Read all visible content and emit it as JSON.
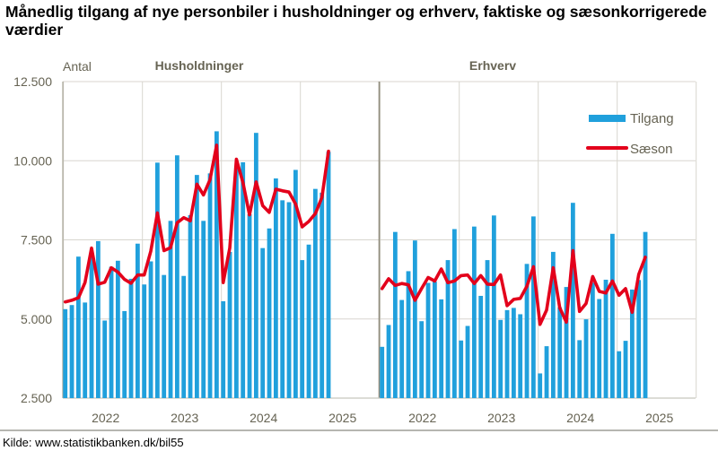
{
  "chart_data": [
    {
      "type": "bar+line",
      "title": "Månedlig tilgang af nye personbiler i husholdninger og erhverv, faktiske og sæsonkorrigerede værdier",
      "panel_title": "Husholdninger",
      "ylabel": "Antal",
      "ylim": [
        2500,
        12500
      ],
      "yticks": [
        "2.500",
        "5.000",
        "7.500",
        "10.000",
        "12.500"
      ],
      "ytick_values": [
        2500,
        5000,
        7500,
        10000,
        12500
      ],
      "xticks": [
        "2022",
        "2023",
        "2024",
        "2025"
      ],
      "x_start": "2022-01",
      "x_end": "2025-05",
      "grid": true,
      "series": [
        {
          "name": "Tilgang",
          "kind": "bar",
          "color": "#20a0dc",
          "values": [
            5310,
            5440,
            6970,
            5520,
            7100,
            7460,
            4950,
            6650,
            6840,
            5250,
            6270,
            7380,
            6090,
            6820,
            9940,
            6390,
            8100,
            10170,
            6360,
            8280,
            9550,
            8100,
            9600,
            10930,
            5560,
            7120,
            9800,
            9950,
            8310,
            10880,
            7240,
            7860,
            9440,
            8750,
            8690,
            9710,
            6860,
            7350,
            9110,
            8990,
            10280
          ]
        },
        {
          "name": "Sæson",
          "kind": "line",
          "color": "#e3001b",
          "values": [
            5540,
            5590,
            5670,
            6150,
            7240,
            6100,
            6160,
            6620,
            6480,
            6250,
            6130,
            6390,
            6390,
            7140,
            8350,
            7160,
            7250,
            8040,
            8200,
            8100,
            9260,
            8920,
            9400,
            10490,
            6150,
            7240,
            10050,
            9310,
            8290,
            9330,
            8580,
            8370,
            9100,
            9050,
            9010,
            8630,
            7910,
            8080,
            8330,
            8840,
            10300
          ]
        }
      ]
    },
    {
      "type": "bar+line",
      "panel_title": "Erhverv",
      "ylim": [
        2500,
        12500
      ],
      "xticks": [
        "2022",
        "2023",
        "2024",
        "2025"
      ],
      "x_start": "2022-01",
      "x_end": "2025-05",
      "grid": true,
      "legend": {
        "placement": "top-right",
        "entries": [
          "Tilgang",
          "Sæson"
        ]
      },
      "series": [
        {
          "name": "Tilgang",
          "kind": "bar",
          "color": "#20a0dc",
          "values": [
            4120,
            4810,
            7750,
            5600,
            6510,
            7480,
            4930,
            6140,
            6180,
            5620,
            6860,
            7840,
            4320,
            4780,
            7920,
            5730,
            6860,
            8270,
            4970,
            5280,
            5350,
            5150,
            6740,
            8240,
            3280,
            4140,
            7120,
            5370,
            6010,
            8670,
            4330,
            4990,
            6150,
            5630,
            6240,
            7690,
            3980,
            4310,
            5930,
            6230,
            7750
          ]
        },
        {
          "name": "Sæson",
          "kind": "line",
          "color": "#e3001b",
          "values": [
            5960,
            6270,
            6060,
            6120,
            6080,
            5590,
            5960,
            6310,
            6200,
            6580,
            6150,
            6200,
            6370,
            6390,
            6120,
            6370,
            6100,
            6090,
            6390,
            5420,
            5620,
            5650,
            6030,
            6650,
            4830,
            5280,
            6620,
            5350,
            4900,
            7160,
            5240,
            5490,
            6340,
            5870,
            5820,
            6200,
            5750,
            5960,
            5210,
            6410,
            6950
          ]
        }
      ]
    }
  ],
  "source": "Kilde: www.statistikbanken.dk/bil55"
}
